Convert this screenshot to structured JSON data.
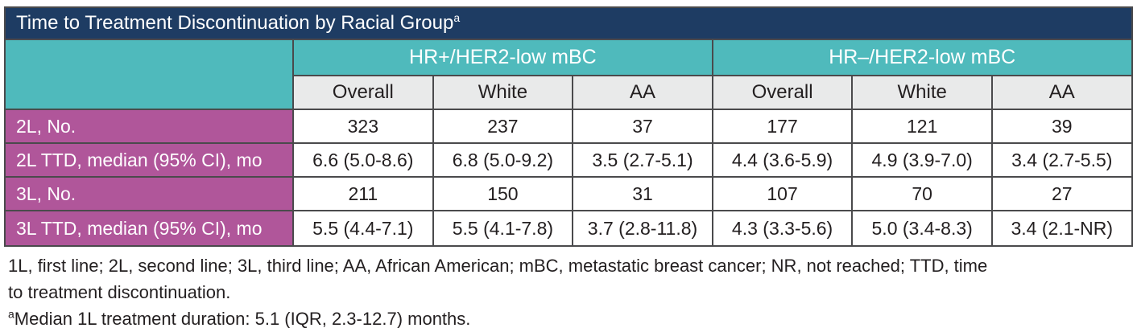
{
  "title": {
    "text": "Time to Treatment Discontinuation by Racial Group",
    "superscript": "a"
  },
  "table": {
    "group_headers": [
      {
        "label": "HR+/HER2-low mBC"
      },
      {
        "label": "HR–/HER2-low mBC"
      }
    ],
    "sub_headers": [
      "Overall",
      "White",
      "AA",
      "Overall",
      "White",
      "AA"
    ],
    "rows": [
      {
        "label": "2L, No.",
        "values": [
          "323",
          "237",
          "37",
          "177",
          "121",
          "39"
        ]
      },
      {
        "label": "2L TTD, median (95% CI), mo",
        "values": [
          "6.6 (5.0-8.6)",
          "6.8 (5.0-9.2)",
          "3.5 (2.7-5.1)",
          "4.4 (3.6-5.9)",
          "4.9 (3.9-7.0)",
          "3.4 (2.7-5.5)"
        ]
      },
      {
        "label": "3L, No.",
        "values": [
          "211",
          "150",
          "31",
          "107",
          "70",
          "27"
        ]
      },
      {
        "label": "3L TTD, median (95% CI), mo",
        "values": [
          "5.5 (4.4-7.1)",
          "5.5 (4.1-7.8)",
          "3.7 (2.8-11.8)",
          "4.3 (3.3-5.6)",
          "5.0 (3.4-8.3)",
          "3.4 (2.1-NR)"
        ]
      }
    ]
  },
  "footnotes": {
    "abbreviations_line1": "1L, first line; 2L, second line; 3L, third line; AA, African American; mBC, metastatic breast cancer; NR, not reached; TTD, time",
    "abbreviations_line2": "to treatment discontinuation.",
    "note_superscript": "a",
    "note_text": "Median 1L treatment duration: 5.1 (IQR, 2.3-12.7) months."
  },
  "colors": {
    "title_bar": "#1e3c63",
    "group_header": "#4fbabc",
    "row_label": "#b0569a",
    "sub_header": "#e9eaea",
    "border": "#4a4a4c",
    "text_dark": "#231f20",
    "text_light": "#ffffff"
  }
}
